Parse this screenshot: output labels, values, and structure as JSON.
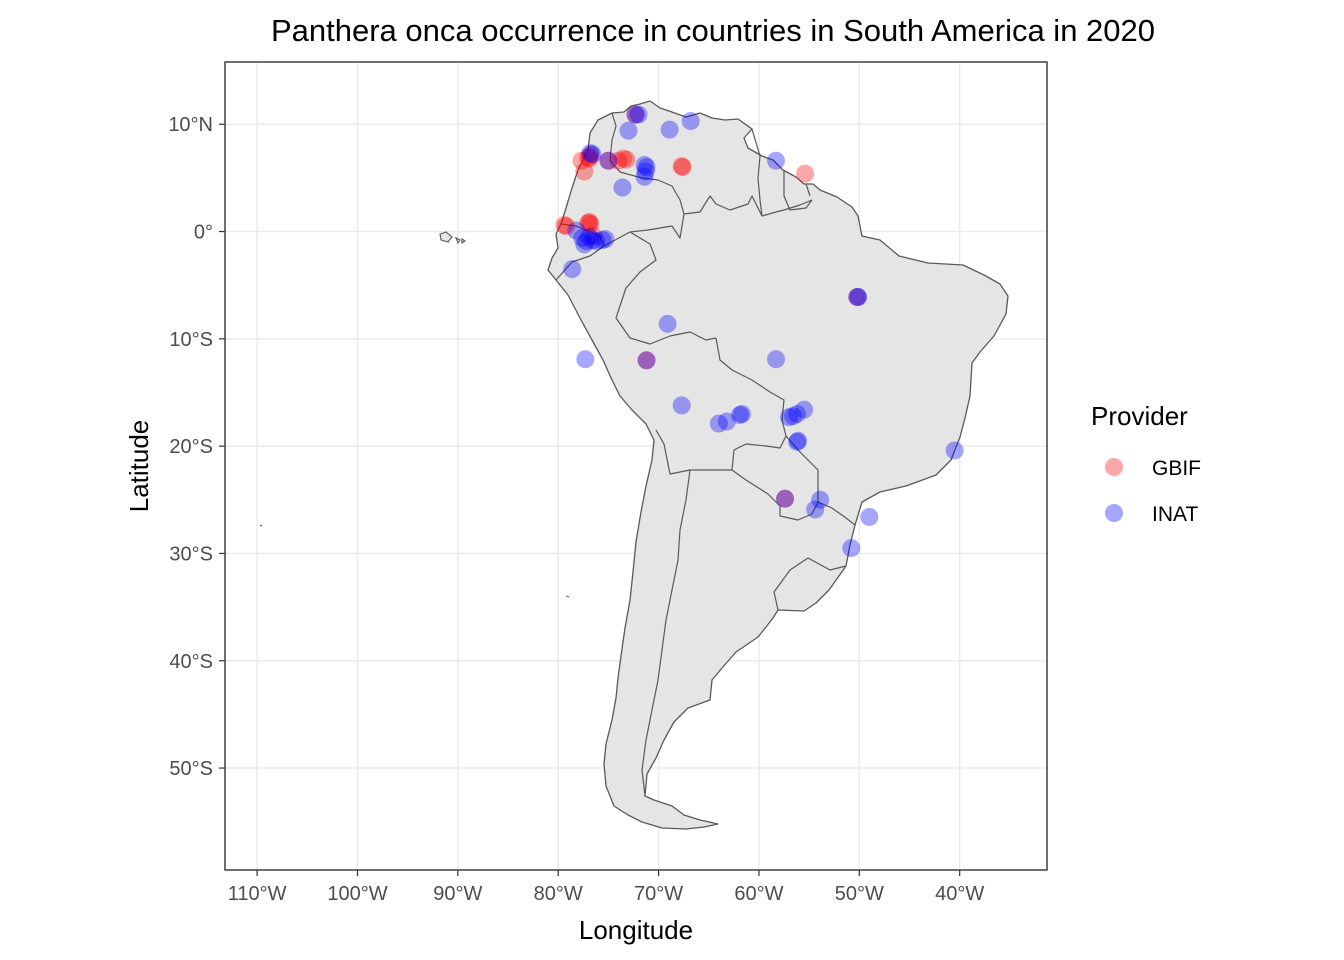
{
  "chart_data": {
    "type": "scatter",
    "title": "Panthera onca occurrence in countries in South America in 2020",
    "xlabel": "Longitude",
    "ylabel": "Latitude",
    "xlim": [
      -113.2,
      -31.3
    ],
    "ylim": [
      -59.5,
      15.8
    ],
    "x_ticks": [
      -110,
      -100,
      -90,
      -80,
      -70,
      -60,
      -50,
      -40
    ],
    "x_tick_labels": [
      "110°W",
      "100°W",
      "90°W",
      "80°W",
      "70°W",
      "60°W",
      "50°W",
      "40°W"
    ],
    "y_ticks": [
      10,
      0,
      -10,
      -20,
      -30,
      -40,
      -50
    ],
    "y_tick_labels": [
      "10°N",
      "0°",
      "10°S",
      "20°S",
      "30°S",
      "40°S",
      "50°S"
    ],
    "grid": true,
    "basemap": "South America country outlines, fill #e5e5e5, border #595959",
    "legend": {
      "title": "Provider",
      "position": "right",
      "entries": [
        {
          "label": "GBIF",
          "color": "#ff0000"
        },
        {
          "label": "INAT",
          "color": "#0000ff"
        }
      ]
    },
    "series": [
      {
        "name": "GBIF",
        "color": "#ff0000",
        "opacity": 0.35,
        "points": [
          {
            "x": -77.7,
            "y": 6.6
          },
          {
            "x": -77.4,
            "y": 5.6
          },
          {
            "x": -77.0,
            "y": 6.9
          },
          {
            "x": -76.8,
            "y": 7.1
          },
          {
            "x": -76.9,
            "y": 6.8
          },
          {
            "x": -74.0,
            "y": 6.6
          },
          {
            "x": -73.5,
            "y": 6.8
          },
          {
            "x": -73.2,
            "y": 6.7
          },
          {
            "x": -67.7,
            "y": 6.1
          },
          {
            "x": -67.6,
            "y": 6.0
          },
          {
            "x": -55.4,
            "y": 5.4
          },
          {
            "x": -79.4,
            "y": 0.6
          },
          {
            "x": -79.2,
            "y": 0.5
          },
          {
            "x": -77.0,
            "y": 0.8
          },
          {
            "x": -76.9,
            "y": 0.9
          },
          {
            "x": -76.8,
            "y": 0.7
          },
          {
            "x": -76.5,
            "y": -0.4
          },
          {
            "x": -71.2,
            "y": -12.0
          },
          {
            "x": -57.4,
            "y": -24.9
          },
          {
            "x": -50.2,
            "y": -6.1
          },
          {
            "x": -72.3,
            "y": 10.9
          },
          {
            "x": -75.0,
            "y": 6.6
          }
        ]
      },
      {
        "name": "INAT",
        "color": "#0000ff",
        "opacity": 0.35,
        "points": [
          {
            "x": -72.3,
            "y": 10.9
          },
          {
            "x": -72.0,
            "y": 10.9
          },
          {
            "x": -73.0,
            "y": 9.4
          },
          {
            "x": -68.9,
            "y": 9.5
          },
          {
            "x": -66.8,
            "y": 10.3
          },
          {
            "x": -58.3,
            "y": 6.6
          },
          {
            "x": -76.8,
            "y": 7.3
          },
          {
            "x": -76.6,
            "y": 7.2
          },
          {
            "x": -75.0,
            "y": 6.6
          },
          {
            "x": -71.4,
            "y": 6.2
          },
          {
            "x": -71.3,
            "y": 5.6
          },
          {
            "x": -71.4,
            "y": 5.1
          },
          {
            "x": -71.2,
            "y": 6.0
          },
          {
            "x": -73.6,
            "y": 4.1
          },
          {
            "x": -78.2,
            "y": 0.1
          },
          {
            "x": -77.6,
            "y": -0.6
          },
          {
            "x": -77.4,
            "y": -1.2
          },
          {
            "x": -77.2,
            "y": -0.9
          },
          {
            "x": -76.9,
            "y": -0.5
          },
          {
            "x": -76.6,
            "y": -0.8
          },
          {
            "x": -76.2,
            "y": -0.9
          },
          {
            "x": -75.6,
            "y": -0.8
          },
          {
            "x": -75.3,
            "y": -0.7
          },
          {
            "x": -78.6,
            "y": -3.5
          },
          {
            "x": -77.3,
            "y": -11.9
          },
          {
            "x": -71.2,
            "y": -12.0
          },
          {
            "x": -69.1,
            "y": -8.6
          },
          {
            "x": -67.7,
            "y": -16.2
          },
          {
            "x": -64.0,
            "y": -17.9
          },
          {
            "x": -63.2,
            "y": -17.7
          },
          {
            "x": -61.9,
            "y": -17.1
          },
          {
            "x": -61.7,
            "y": -17.0
          },
          {
            "x": -58.3,
            "y": -11.9
          },
          {
            "x": -57.0,
            "y": -17.3
          },
          {
            "x": -56.6,
            "y": -17.2
          },
          {
            "x": -56.2,
            "y": -17.0
          },
          {
            "x": -55.5,
            "y": -16.6
          },
          {
            "x": -56.2,
            "y": -19.6
          },
          {
            "x": -56.1,
            "y": -19.5
          },
          {
            "x": -57.4,
            "y": -24.9
          },
          {
            "x": -54.4,
            "y": -25.9
          },
          {
            "x": -53.9,
            "y": -25.0
          },
          {
            "x": -50.8,
            "y": -29.5
          },
          {
            "x": -49.0,
            "y": -26.6
          },
          {
            "x": -40.5,
            "y": -20.4
          },
          {
            "x": -50.2,
            "y": -6.1
          },
          {
            "x": -50.1,
            "y": -6.1
          }
        ]
      }
    ]
  }
}
